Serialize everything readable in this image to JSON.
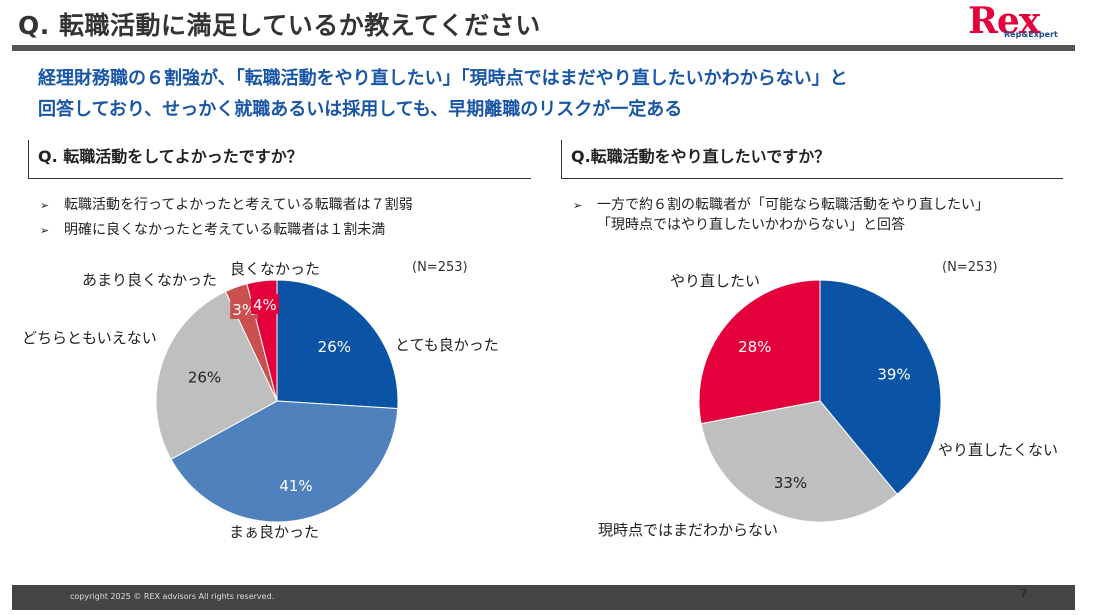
{
  "title": "Q. 転職活動に満足しているか教えてください",
  "logo": {
    "main": "Rex",
    "sub": "Rep&Expert"
  },
  "headline": {
    "line1": "経理財務職の６割強が、「転職活動をやり直したい」「現時点ではまだやり直したいかわからない」と",
    "line2": "回答しており、せっかく就職あるいは採用しても、早期離職のリスクが一定ある"
  },
  "left": {
    "question": "Q. 転職活動をしてよかったですか？",
    "bullets": [
      "転職活動を行ってよかったと考えている転職者は７割弱",
      "明確に良くなかったと考えている転職者は１割未満"
    ],
    "n_label": "(N=253)"
  },
  "right": {
    "question": "Q.転職活動をやり直したいですか？",
    "bullets": [
      "一方で約６割の転職者が「可能なら転職活動をやり直したい」",
      "「現時点ではやり直したいかわからない」と回答"
    ],
    "n_label": "(N=253)"
  },
  "colors": {
    "blue": "#0b54a5",
    "lightblue": "#4f81bd",
    "gray": "#bfbfbf",
    "lightred": "#c9504f",
    "red": "#e4003a"
  },
  "chart_data": [
    {
      "type": "pie",
      "title": "Q. 転職活動をしてよかったですか？",
      "n": 253,
      "categories": [
        "とても良かった",
        "まぁ良かった",
        "どちらともいえない",
        "あまり良くなかった",
        "良くなかった"
      ],
      "values": [
        26,
        41,
        26,
        3,
        4
      ],
      "value_labels": [
        "26%",
        "41%",
        "26%",
        "3%",
        "4%"
      ],
      "colors": [
        "#0b54a5",
        "#4f81bd",
        "#bfbfbf",
        "#c9504f",
        "#e4003a"
      ]
    },
    {
      "type": "pie",
      "title": "Q.転職活動をやり直したいですか？",
      "n": 253,
      "categories": [
        "やり直したくない",
        "現時点ではまだわからない",
        "やり直したい"
      ],
      "values": [
        39,
        33,
        28
      ],
      "value_labels": [
        "39%",
        "33%",
        "28%"
      ],
      "colors": [
        "#0b54a5",
        "#bfbfbf",
        "#e4003a"
      ]
    }
  ],
  "footer": {
    "copyright": "copyright 2025 © REX advisors All rights reserved.",
    "page": "7"
  }
}
